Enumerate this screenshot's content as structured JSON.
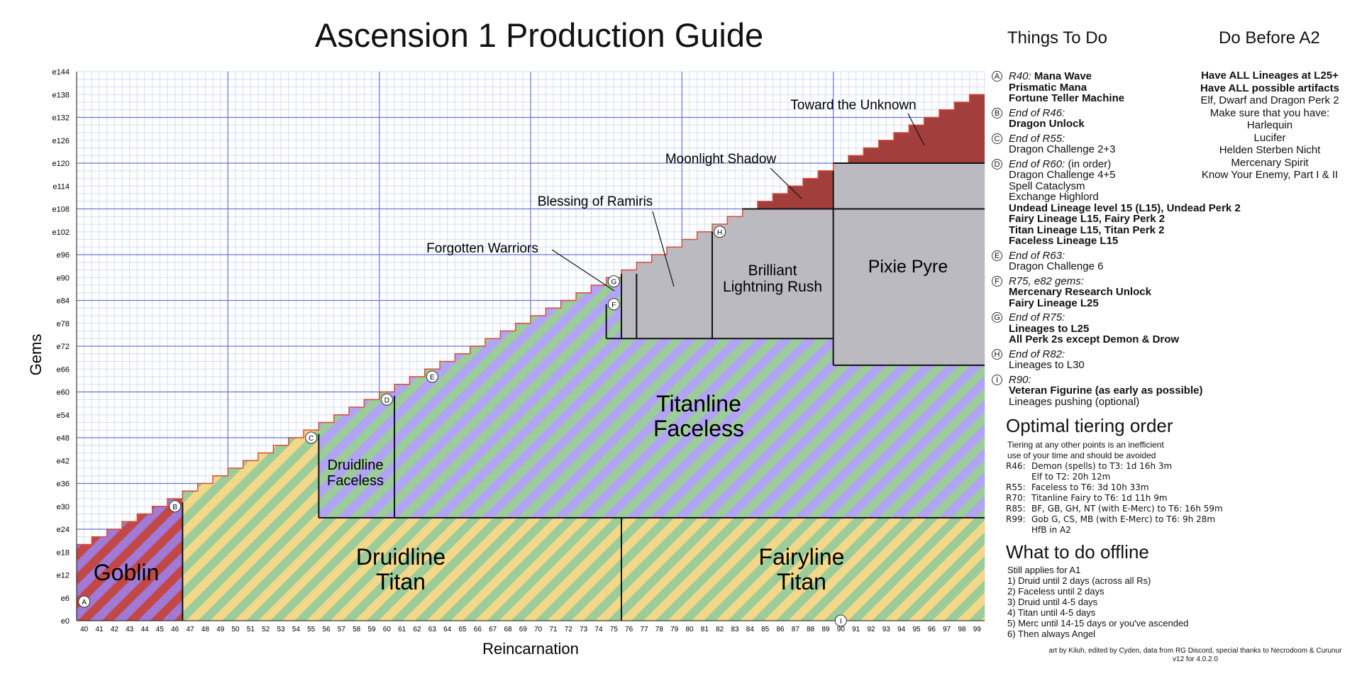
{
  "title": "Ascension 1 Production Guide",
  "chart_data": {
    "type": "area",
    "xlabel": "Reincarnation",
    "ylabel": "Gems",
    "xlim": [
      40,
      99
    ],
    "ylim": [
      0,
      144
    ],
    "x_ticks": [
      40,
      41,
      42,
      43,
      44,
      45,
      46,
      47,
      48,
      49,
      50,
      51,
      52,
      53,
      54,
      55,
      56,
      57,
      58,
      59,
      60,
      61,
      62,
      63,
      64,
      65,
      66,
      67,
      68,
      69,
      70,
      71,
      72,
      73,
      74,
      75,
      76,
      77,
      78,
      79,
      80,
      81,
      82,
      83,
      84,
      85,
      86,
      87,
      88,
      89,
      90,
      91,
      92,
      93,
      94,
      95,
      96,
      97,
      98,
      99
    ],
    "y_ticks": [
      "e0",
      "e6",
      "e12",
      "e18",
      "e24",
      "e30",
      "e36",
      "e42",
      "e48",
      "e54",
      "e60",
      "e66",
      "e72",
      "e78",
      "e84",
      "e90",
      "e96",
      "e102",
      "e108",
      "e114",
      "e120",
      "e126",
      "e132",
      "e138",
      "e144"
    ],
    "grid": true,
    "step_values": [
      20,
      22,
      24,
      26,
      28,
      30,
      32,
      34,
      36,
      38,
      40,
      42,
      44,
      46,
      48,
      50,
      52,
      54,
      56,
      58,
      60,
      62,
      64,
      66,
      68,
      70,
      72,
      74,
      76,
      78,
      80,
      82,
      84,
      86,
      88,
      90,
      92,
      94,
      96,
      98,
      100,
      102,
      104,
      106,
      108,
      110,
      112,
      114,
      116,
      118,
      120,
      122,
      124,
      126,
      128,
      130,
      132,
      134,
      136,
      138
    ],
    "regions": [
      {
        "name": "Goblin",
        "x": [
          40,
          46
        ]
      },
      {
        "name": "Druidline Titan",
        "x": [
          46.5,
          75.5
        ],
        "y": [
          0,
          27
        ]
      },
      {
        "name": "Fairyline Titan",
        "x": [
          75.5,
          99.5
        ],
        "y": [
          0,
          27
        ]
      },
      {
        "name": "Druidline Faceless",
        "x": [
          55.5,
          60.5
        ],
        "y": [
          27,
          60
        ]
      },
      {
        "name": "Titanline Faceless",
        "x": [
          60.5,
          99.5
        ],
        "y": [
          27,
          74
        ]
      },
      {
        "name": "Brilliant Lightning Rush",
        "x": [
          74.5,
          89.5
        ],
        "y": [
          74,
          108
        ]
      },
      {
        "name": "Pixie Pyre",
        "x": [
          89.5,
          99.5
        ],
        "y": [
          67,
          120
        ]
      }
    ],
    "region_labels": {
      "goblin": "Goblin",
      "druid_titan": [
        "Druidline",
        "Titan"
      ],
      "fairy_titan": [
        "Fairyline",
        "Titan"
      ],
      "druid_faceless": [
        "Druidline",
        "Faceless"
      ],
      "titan_faceless": [
        "Titanline",
        "Faceless"
      ],
      "brilliant": [
        "Brilliant",
        "Lightning Rush"
      ],
      "pixie": "Pixie Pyre"
    },
    "annotations": [
      "Toward the Unknown",
      "Moonlight Shadow",
      "Blessing of Ramiris",
      "Forgotten Warriors"
    ],
    "markers": [
      {
        "label": "A",
        "x": 40,
        "y": 5
      },
      {
        "label": "B",
        "x": 46,
        "y": 30
      },
      {
        "label": "C",
        "x": 55,
        "y": 48
      },
      {
        "label": "D",
        "x": 60,
        "y": 58
      },
      {
        "label": "E",
        "x": 63,
        "y": 64
      },
      {
        "label": "F",
        "x": 75,
        "y": 83
      },
      {
        "label": "G",
        "x": 75,
        "y": 89
      },
      {
        "label": "H",
        "x": 82,
        "y": 102
      },
      {
        "label": "I",
        "x": 90,
        "y": 0
      }
    ]
  },
  "things_to_do": {
    "heading": "Things To Do",
    "items": [
      {
        "marker": "A",
        "lines": [
          {
            "segs": [
              {
                "t": "R40: ",
                "s": "i"
              },
              {
                "t": "Mana Wave",
                "s": "b"
              }
            ]
          },
          {
            "segs": [
              {
                "t": "Prismatic Mana",
                "s": "b"
              }
            ]
          },
          {
            "segs": [
              {
                "t": "Fortune Teller Machine",
                "s": "b"
              }
            ]
          }
        ]
      },
      {
        "marker": "B",
        "lines": [
          {
            "segs": [
              {
                "t": "End of R46:",
                "s": "i"
              }
            ]
          },
          {
            "segs": [
              {
                "t": "Dragon Unlock",
                "s": "b"
              }
            ]
          }
        ]
      },
      {
        "marker": "C",
        "lines": [
          {
            "segs": [
              {
                "t": "End of R55:",
                "s": "i"
              }
            ]
          },
          {
            "segs": [
              {
                "t": "Dragon Challenge 2+3",
                "s": "n"
              }
            ]
          }
        ]
      },
      {
        "marker": "D",
        "lines": [
          {
            "segs": [
              {
                "t": "End of R60:",
                "s": "i"
              },
              {
                "t": " (in order)",
                "s": "n"
              }
            ]
          },
          {
            "segs": [
              {
                "t": "Dragon Challenge 4+5",
                "s": "n"
              }
            ]
          },
          {
            "segs": [
              {
                "t": "Spell Cataclysm",
                "s": "n"
              }
            ]
          },
          {
            "segs": [
              {
                "t": "Exchange Highlord",
                "s": "n"
              }
            ]
          },
          {
            "segs": [
              {
                "t": "Undead Lineage level 15 (L15), Undead Perk 2",
                "s": "b"
              }
            ]
          },
          {
            "segs": [
              {
                "t": "Fairy Lineage L15, Fairy Perk 2",
                "s": "b"
              }
            ]
          },
          {
            "segs": [
              {
                "t": "Titan Lineage L15, Titan Perk 2",
                "s": "b"
              }
            ]
          },
          {
            "segs": [
              {
                "t": "Faceless Lineage L15",
                "s": "b"
              }
            ]
          }
        ]
      },
      {
        "marker": "E",
        "lines": [
          {
            "segs": [
              {
                "t": "End of R63:",
                "s": "i"
              }
            ]
          },
          {
            "segs": [
              {
                "t": "Dragon Challenge 6",
                "s": "n"
              }
            ]
          }
        ]
      },
      {
        "marker": "F",
        "lines": [
          {
            "segs": [
              {
                "t": "R75, e82 gems:",
                "s": "i"
              }
            ]
          },
          {
            "segs": [
              {
                "t": "Mercenary Research Unlock",
                "s": "b"
              }
            ]
          },
          {
            "segs": [
              {
                "t": "Fairy Lineage L25",
                "s": "b"
              }
            ]
          }
        ]
      },
      {
        "marker": "G",
        "lines": [
          {
            "segs": [
              {
                "t": "End of R75:",
                "s": "i"
              }
            ]
          },
          {
            "segs": [
              {
                "t": "Lineages to L25",
                "s": "b"
              }
            ]
          },
          {
            "segs": [
              {
                "t": "All Perk 2s except Demon & Drow",
                "s": "b"
              }
            ]
          }
        ]
      },
      {
        "marker": "H",
        "lines": [
          {
            "segs": [
              {
                "t": "End of R82:",
                "s": "i"
              }
            ]
          },
          {
            "segs": [
              {
                "t": "Lineages to L30",
                "s": "n"
              }
            ]
          }
        ]
      },
      {
        "marker": "I",
        "lines": [
          {
            "segs": [
              {
                "t": "R90:",
                "s": "i"
              }
            ]
          },
          {
            "segs": [
              {
                "t": "Veteran Figurine (as early as possible)",
                "s": "b"
              }
            ]
          },
          {
            "segs": [
              {
                "t": "Lineages pushing (optional)",
                "s": "n"
              }
            ]
          }
        ]
      }
    ]
  },
  "do_before_a2": {
    "heading": "Do Before A2",
    "items": [
      {
        "t": "Have ALL Lineages at L25+",
        "b": true
      },
      {
        "t": "Have ALL possible artifacts",
        "b": true
      },
      {
        "t": "Elf, Dwarf and Dragon Perk 2",
        "b": false
      },
      {
        "t": "Make sure that you have:",
        "b": false
      },
      {
        "t": "Harlequin",
        "b": false
      },
      {
        "t": "Lucifer",
        "b": false
      },
      {
        "t": "Helden Sterben Nicht",
        "b": false
      },
      {
        "t": "Mercenary Spirit",
        "b": false
      },
      {
        "t": "Know Your Enemy, Part I & II",
        "b": false
      }
    ]
  },
  "tiering": {
    "heading": "Optimal tiering order",
    "note": [
      "Tiering at any other points is an inefficient",
      "use of your time and should be avoided"
    ],
    "rows": [
      {
        "r": "R46:",
        "t": "Demon (spells) to T3: 1d 16h 3m"
      },
      {
        "r": "",
        "t": "Elf to T2: 20h 12m"
      },
      {
        "r": "R55:",
        "t": "Faceless to T6: 3d 10h 33m"
      },
      {
        "r": "R70:",
        "t": "Titanline Fairy to T6: 1d 11h 9m"
      },
      {
        "r": "R85:",
        "t": "BF, GB, GH, NT (with E-Merc) to T6: 16h 59m"
      },
      {
        "r": "R99:",
        "t": "Gob G, CS, MB (with E-Merc) to T6: 9h 28m"
      },
      {
        "r": "",
        "t": "HfB in A2"
      }
    ]
  },
  "offline": {
    "heading": "What to do offline",
    "items": [
      "Still applies for A1",
      "1) Druid until 2 days (across all Rs)",
      "2) Faceless until 2 days",
      "3) Druid until 4-5 days",
      "4) Titan until 4-5 days",
      "5) Merc until 14-15 days or you've ascended",
      "6) Then always Angel"
    ]
  },
  "credits": [
    "art by Kiluh, edited by Cyden, data from RG Discord, special thanks to Necrodoom & Curunur",
    "v12 for 4.0.2.0"
  ],
  "colors": {
    "goblin_purple": "#a07ad6",
    "goblin_red": "#c24848",
    "stripe_yellow": "#f2d888",
    "stripe_green": "#9ccc9a",
    "stripe_purple": "#b1a4f5",
    "gray": "#bcbac1",
    "dark_red": "#a23f3c",
    "grid_minor": "#d6dcf5",
    "grid_major": "#6a74d8"
  }
}
